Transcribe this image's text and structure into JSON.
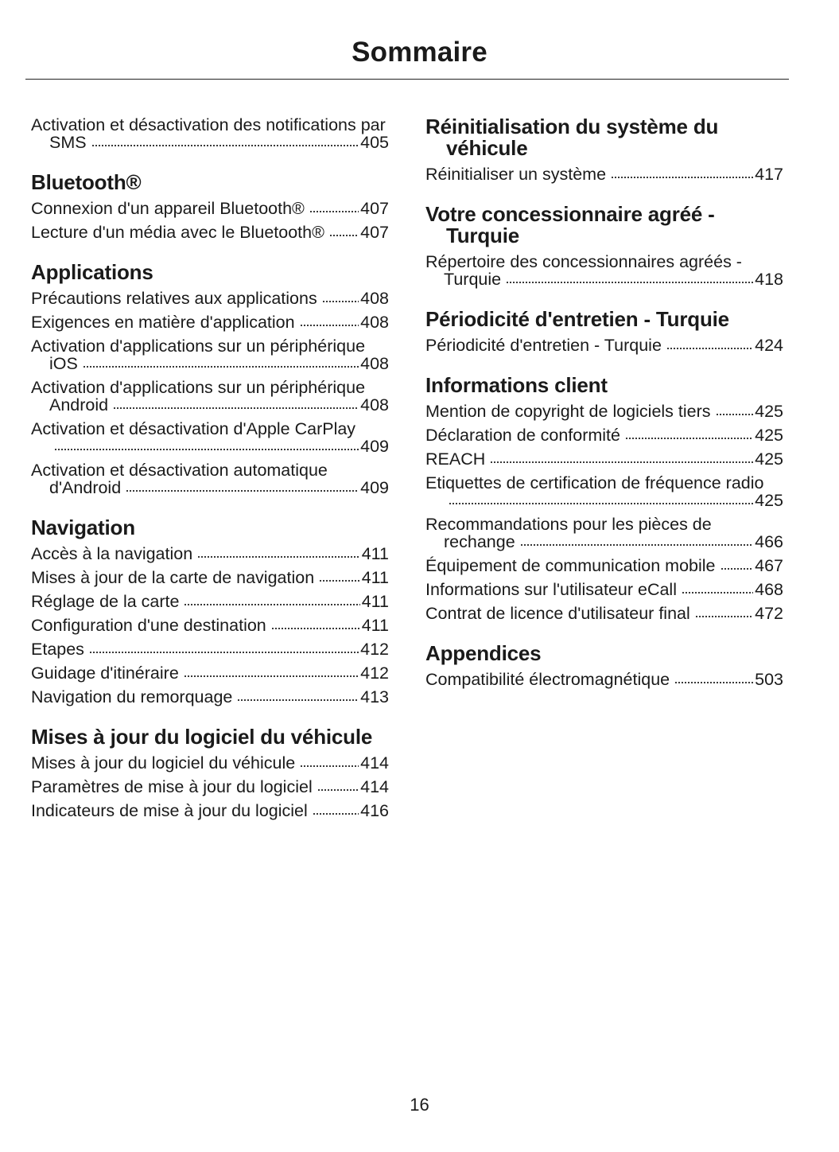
{
  "header": {
    "title": "Sommaire"
  },
  "footer": {
    "page_number": "16"
  },
  "columns": [
    {
      "sections": [
        {
          "heading": "",
          "entries": [
            {
              "title": "Activation et désactivation des notifications par SMS",
              "page": "405"
            }
          ]
        },
        {
          "heading": "Bluetooth®",
          "entries": [
            {
              "title": "Connexion d'un appareil Bluetooth®",
              "page": "407"
            },
            {
              "title": "Lecture d'un média avec le Bluetooth®",
              "page": "407"
            }
          ]
        },
        {
          "heading": "Applications",
          "entries": [
            {
              "title": "Précautions relatives aux applications",
              "page": "408"
            },
            {
              "title": "Exigences en matière d'application",
              "page": "408"
            },
            {
              "title": "Activation d'applications sur un périphérique iOS",
              "page": "408"
            },
            {
              "title": "Activation d'applications sur un périphérique Android",
              "page": "408"
            },
            {
              "title": "Activation et désactivation d'Apple CarPlay",
              "page": "409"
            },
            {
              "title": "Activation et désactivation automatique d'Android",
              "page": "409"
            }
          ]
        },
        {
          "heading": "Navigation",
          "entries": [
            {
              "title": "Accès à la navigation",
              "page": "411"
            },
            {
              "title": "Mises à jour de la carte de navigation",
              "page": "411"
            },
            {
              "title": "Réglage de la carte",
              "page": "411"
            },
            {
              "title": "Configuration d'une destination",
              "page": "411"
            },
            {
              "title": "Etapes",
              "page": "412"
            },
            {
              "title": "Guidage d'itinéraire",
              "page": "412"
            },
            {
              "title": "Navigation du remorquage",
              "page": "413"
            }
          ]
        },
        {
          "heading": "Mises à jour du logiciel du véhicule",
          "entries": [
            {
              "title": "Mises à jour du logiciel du véhicule",
              "page": "414"
            },
            {
              "title": "Paramètres de mise à jour du logiciel",
              "page": "414"
            },
            {
              "title": "Indicateurs de mise à jour du logiciel",
              "page": "416"
            }
          ]
        }
      ]
    },
    {
      "sections": [
        {
          "heading": "Réinitialisation du système du véhicule",
          "entries": [
            {
              "title": "Réinitialiser un système",
              "page": "417"
            }
          ]
        },
        {
          "heading": "Votre concessionnaire agréé - Turquie",
          "entries": [
            {
              "title": "Répertoire des concessionnaires agréés - Turquie",
              "page": "418"
            }
          ]
        },
        {
          "heading": "Périodicité d'entretien - Turquie",
          "entries": [
            {
              "title": "Périodicité d'entretien - Turquie",
              "page": "424"
            }
          ]
        },
        {
          "heading": "Informations client",
          "entries": [
            {
              "title": "Mention de copyright de logiciels tiers",
              "page": "425"
            },
            {
              "title": "Déclaration de conformité",
              "page": "425"
            },
            {
              "title": "REACH",
              "page": "425"
            },
            {
              "title": "Etiquettes de certification de fréquence radio",
              "page": "425"
            },
            {
              "title": "Recommandations pour les pièces de rechange",
              "page": "466"
            },
            {
              "title": "Équipement de communication mobile",
              "page": "467"
            },
            {
              "title": "Informations sur l'utilisateur eCall",
              "page": "468"
            },
            {
              "title": "Contrat de licence d'utilisateur final",
              "page": "472"
            }
          ]
        },
        {
          "heading": "Appendices",
          "entries": [
            {
              "title": "Compatibilité électromagnétique",
              "page": "503"
            }
          ]
        }
      ]
    }
  ]
}
